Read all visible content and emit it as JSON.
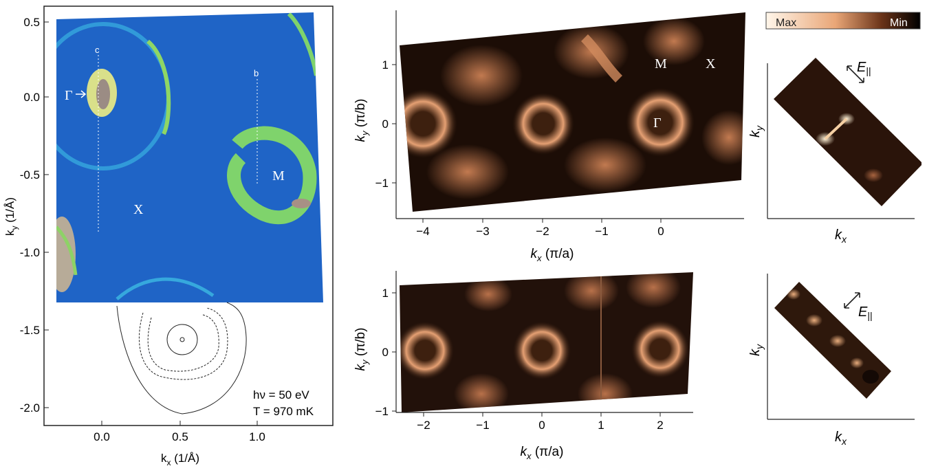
{
  "panel_a": {
    "x_ticks": [
      "0.0",
      "0.5",
      "1.0"
    ],
    "y_ticks": [
      "0.5",
      "0.0",
      "-0.5",
      "-1.0",
      "-1.5",
      "-2.0"
    ],
    "xlabel_main": "k",
    "xlabel_sub": "x",
    "xlabel_unit": " (1/Å)",
    "ylabel_main": "k",
    "ylabel_sub": "y",
    "ylabel_unit": " (1/Å)",
    "points": {
      "gamma": "Γ",
      "x": "X",
      "m": "M"
    },
    "cut_labels": {
      "c": "c",
      "b": "b"
    },
    "annotation_hv": "hν = 50 eV",
    "annotation_t": "T = 970 mK",
    "colors": {
      "background": "#1e63c4",
      "ring": "#2fb0d8",
      "pocket": "#7bd36a",
      "hot": "#c8b9a9"
    }
  },
  "panel_top": {
    "x_ticks": [
      "−4",
      "−3",
      "−2",
      "−1",
      "0"
    ],
    "y_ticks": [
      "1",
      "0",
      "−1"
    ],
    "xlabel_main": "k",
    "xlabel_sub": "x",
    "xlabel_unit": " (π/a)",
    "ylabel_main": "k",
    "ylabel_sub": "y",
    "ylabel_unit": " (π/b)",
    "points": {
      "m": "M",
      "x": "X",
      "gamma": "Γ"
    }
  },
  "panel_bottom": {
    "x_ticks": [
      "−2",
      "−1",
      "0",
      "1",
      "2"
    ],
    "y_ticks": [
      "1",
      "0",
      "−1"
    ],
    "xlabel_main": "k",
    "xlabel_sub": "x",
    "xlabel_unit": " (π/a)",
    "ylabel_main": "k",
    "ylabel_sub": "y",
    "ylabel_unit": " (π/b)"
  },
  "colorbar": {
    "max_label": "Max",
    "min_label": "Min",
    "colors": [
      "#fff4e6",
      "#e8a273",
      "#000000"
    ]
  },
  "inset_top": {
    "xlabel_main": "k",
    "xlabel_sub": "x",
    "ylabel_main": "k",
    "ylabel_sub": "y",
    "e_main": "E",
    "e_sub": "||"
  },
  "inset_bottom": {
    "xlabel_main": "k",
    "xlabel_sub": "x",
    "ylabel_main": "k",
    "ylabel_sub": "y",
    "e_main": "E",
    "e_sub": "||"
  },
  "heatmap_colors": {
    "dark": "#1a0c06",
    "mid": "#7a4327",
    "bright": "#e8a273",
    "hot": "#fff1dc"
  }
}
